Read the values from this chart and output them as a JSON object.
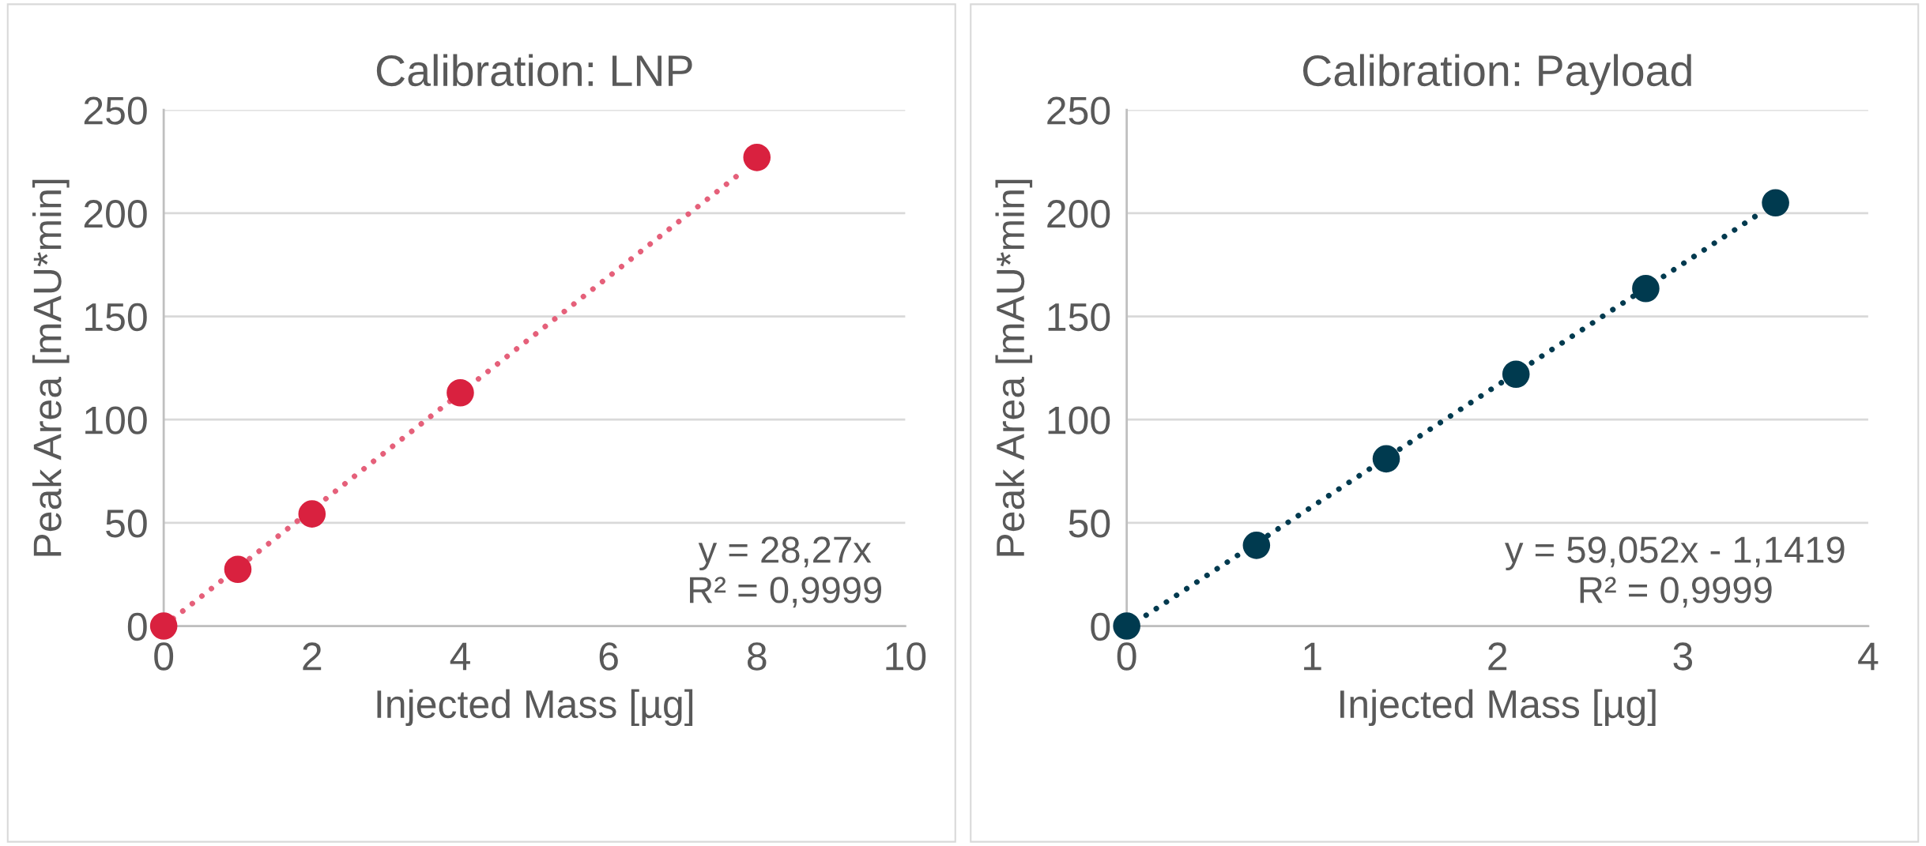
{
  "chart_data": [
    {
      "type": "scatter",
      "title": "Calibration: LNP",
      "xlabel": "Injected Mass [µg]",
      "ylabel": "Peak Area [mAU*min]",
      "x": [
        0,
        1,
        2,
        4,
        8
      ],
      "series": [
        {
          "color": "#d9213f",
          "values": [
            0,
            27.5,
            54.3,
            113,
            227
          ],
          "marker": "circle"
        },
        {
          "type": "line",
          "color": "#e5607a",
          "x": [
            0,
            7.8
          ],
          "values": [
            0,
            220
          ],
          "line_style": "dotted"
        }
      ],
      "xlim": [
        0,
        10
      ],
      "xticks": [
        0,
        2,
        4,
        6,
        8,
        10
      ],
      "ylim": [
        0,
        250
      ],
      "yticks": [
        0,
        50,
        100,
        150,
        200,
        250
      ],
      "grid": "y",
      "annotations": [
        "y = 28,27x\nR² = 0,9999"
      ]
    },
    {
      "type": "scatter",
      "title": "Calibration: Payload",
      "xlabel": "Injected Mass [µg]",
      "ylabel": "Peak Area [mAU*min]",
      "x": [
        0,
        0.7,
        1.4,
        2.1,
        2.8,
        3.5
      ],
      "series": [
        {
          "color": "#003a4f",
          "values": [
            0,
            39.1,
            81,
            122,
            163.5,
            205
          ],
          "marker": "circle"
        },
        {
          "type": "line",
          "color": "#003a4f",
          "x": [
            0.05,
            3.4
          ],
          "values": [
            2,
            199
          ],
          "line_style": "dotted"
        }
      ],
      "xlim": [
        0,
        4
      ],
      "xticks": [
        0,
        1,
        2,
        3,
        4
      ],
      "ylim": [
        0,
        250
      ],
      "yticks": [
        0,
        50,
        100,
        150,
        200,
        250
      ],
      "grid": "y",
      "annotations": [
        "y = 59,052x - 1,1419\nR² = 0,9999"
      ]
    }
  ]
}
